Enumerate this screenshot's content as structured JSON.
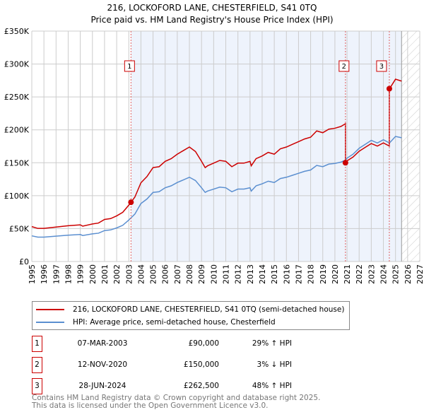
{
  "chart_data": {
    "type": "line",
    "title": "216, LOCKOFORD LANE, CHESTERFIELD, S41 0TQ",
    "subtitle": "Price paid vs. HM Land Registry's House Price Index (HPI)",
    "xlabel": "",
    "ylabel": "",
    "xlim": [
      1995,
      2027
    ],
    "ylim": [
      0,
      350000
    ],
    "y_ticks": [
      {
        "v": 0,
        "label": "£0"
      },
      {
        "v": 50,
        "label": "£50K"
      },
      {
        "v": 100,
        "label": "£100K"
      },
      {
        "v": 150,
        "label": "£150K"
      },
      {
        "v": 200,
        "label": "£200K"
      },
      {
        "v": 250,
        "label": "£250K"
      },
      {
        "v": 300,
        "label": "£300K"
      },
      {
        "v": 350,
        "label": "£350K"
      }
    ],
    "x_ticks": [
      "1995",
      "1996",
      "1997",
      "1998",
      "1999",
      "2000",
      "2001",
      "2002",
      "2003",
      "2004",
      "2005",
      "2006",
      "2007",
      "2008",
      "2009",
      "2010",
      "2011",
      "2012",
      "2013",
      "2014",
      "2015",
      "2016",
      "2017",
      "2018",
      "2019",
      "2020",
      "2021",
      "2022",
      "2023",
      "2024",
      "2025",
      "2026",
      "2027"
    ],
    "grid": true,
    "forecast_start": 2025.5,
    "series": [
      {
        "name": "216, LOCKOFORD LANE, CHESTERFIELD, S41 0TQ (semi-detached house)",
        "color": "#cc0000",
        "derived_from_hpi_and_sales": true
      },
      {
        "name": "HPI: Average price, semi-detached house, Chesterfield",
        "color": "#5b8fd0",
        "x": [
          1995,
          1995.5,
          1996,
          1997,
          1998,
          1999,
          1999.2,
          2000,
          2000.5,
          2001,
          2001.5,
          2002,
          2002.5,
          2003,
          2003.5,
          2004,
          2004.5,
          2005,
          2005.5,
          2006,
          2006.5,
          2007,
          2007.5,
          2008,
          2008.5,
          2009,
          2009.3,
          2009.5,
          2010,
          2010.5,
          2011,
          2011.5,
          2012,
          2012.5,
          2013,
          2013.1,
          2013.5,
          2014,
          2014.5,
          2015,
          2015.5,
          2016,
          2016.5,
          2017,
          2017.5,
          2018,
          2018.5,
          2019,
          2019.5,
          2020,
          2020.5,
          2020.87,
          2021,
          2021.5,
          2022,
          2022.5,
          2023,
          2023.5,
          2024,
          2024.5,
          2025,
          2025.5
        ],
        "y": [
          39,
          37,
          37,
          38.5,
          40,
          41,
          39.5,
          42,
          43,
          47,
          48,
          51,
          55,
          63,
          72,
          88,
          95,
          105,
          106,
          112,
          115,
          120,
          124,
          128,
          123,
          112,
          105,
          107,
          110,
          113,
          112,
          106,
          110,
          110,
          112,
          107,
          115,
          118,
          122,
          120,
          126,
          128,
          131,
          134,
          137,
          139,
          146,
          144,
          148,
          149,
          151,
          154,
          157,
          163,
          172,
          178,
          184,
          180,
          185,
          180,
          190,
          188
        ]
      }
    ],
    "sales": [
      {
        "id": "1",
        "x": 2003.18,
        "price": 90
      },
      {
        "id": "2",
        "x": 2020.87,
        "price": 150
      },
      {
        "id": "3",
        "x": 2024.49,
        "price": 262.5
      }
    ],
    "y_unit": "thousands GBP"
  },
  "legend": {
    "property": "216, LOCKOFORD LANE, CHESTERFIELD, S41 0TQ (semi-detached house)",
    "hpi": "HPI: Average price, semi-detached house, Chesterfield"
  },
  "transactions": [
    {
      "num": "1",
      "date": "07-MAR-2003",
      "price": "£90,000",
      "hpi": "29% ↑ HPI"
    },
    {
      "num": "2",
      "date": "12-NOV-2020",
      "price": "£150,000",
      "hpi": "3% ↓ HPI"
    },
    {
      "num": "3",
      "date": "28-JUN-2024",
      "price": "£262,500",
      "hpi": "48% ↑ HPI"
    }
  ],
  "footer": {
    "line1": "Contains HM Land Registry data © Crown copyright and database right 2025.",
    "line2": "This data is licensed under the Open Government Licence v3.0."
  },
  "colors": {
    "property": "#cc0000",
    "hpi": "#5b8fd0",
    "shade": "#eef3fc"
  }
}
